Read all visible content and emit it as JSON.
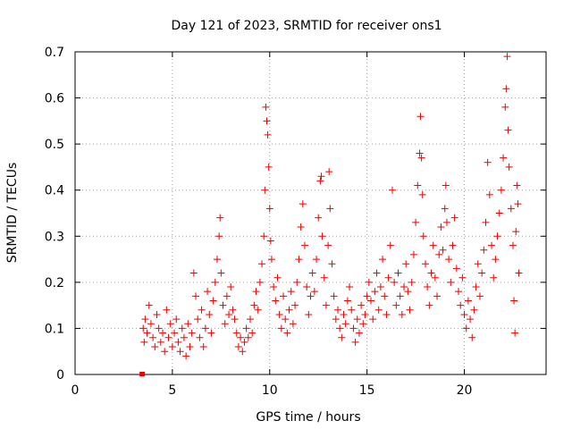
{
  "chart_data": {
    "type": "scatter",
    "title": "Day 121 of 2023, SRMTID for receiver ons1",
    "xlabel": "GPS time / hours",
    "ylabel": "SRMTID / TECUs",
    "xlim": [
      0,
      24.2
    ],
    "ylim": [
      0,
      0.7
    ],
    "x_ticks": [
      0,
      5,
      10,
      15,
      20
    ],
    "y_ticks": [
      0,
      0.1,
      0.2,
      0.3,
      0.4,
      0.5,
      0.6,
      0.7
    ],
    "x_tick_labels": [
      "0",
      "5",
      "10",
      "15",
      "20"
    ],
    "y_tick_labels": [
      "0",
      "0.1",
      "0.2",
      "0.3",
      "0.4",
      "0.5",
      "0.6",
      "0.7"
    ],
    "grid": true,
    "marker": "plus",
    "color": "#ee0000",
    "series": [
      {
        "name": "SRMTID",
        "points": [
          [
            3.45,
            0.0
          ],
          [
            3.5,
            0.1
          ],
          [
            3.55,
            0.07
          ],
          [
            3.6,
            0.12
          ],
          [
            3.7,
            0.09
          ],
          [
            3.8,
            0.15
          ],
          [
            3.9,
            0.11
          ],
          [
            4.0,
            0.08
          ],
          [
            4.1,
            0.06
          ],
          [
            4.2,
            0.13
          ],
          [
            4.3,
            0.1
          ],
          [
            4.4,
            0.07
          ],
          [
            4.5,
            0.09
          ],
          [
            4.6,
            0.05
          ],
          [
            4.7,
            0.14
          ],
          [
            4.8,
            0.08
          ],
          [
            4.9,
            0.11
          ],
          [
            5.0,
            0.06
          ],
          [
            5.1,
            0.09
          ],
          [
            5.2,
            0.12
          ],
          [
            5.3,
            0.07
          ],
          [
            5.4,
            0.05
          ],
          [
            5.5,
            0.1
          ],
          [
            5.6,
            0.08
          ],
          [
            5.7,
            0.04
          ],
          [
            5.8,
            0.11
          ],
          [
            5.9,
            0.06
          ],
          [
            6.0,
            0.09
          ],
          [
            6.1,
            0.22
          ],
          [
            6.2,
            0.17
          ],
          [
            6.3,
            0.12
          ],
          [
            6.4,
            0.08
          ],
          [
            6.5,
            0.14
          ],
          [
            6.6,
            0.06
          ],
          [
            6.7,
            0.1
          ],
          [
            6.8,
            0.18
          ],
          [
            6.9,
            0.13
          ],
          [
            7.0,
            0.09
          ],
          [
            7.1,
            0.16
          ],
          [
            7.2,
            0.2
          ],
          [
            7.3,
            0.25
          ],
          [
            7.4,
            0.3
          ],
          [
            7.45,
            0.34
          ],
          [
            7.5,
            0.22
          ],
          [
            7.6,
            0.15
          ],
          [
            7.7,
            0.11
          ],
          [
            7.8,
            0.17
          ],
          [
            7.9,
            0.13
          ],
          [
            8.0,
            0.19
          ],
          [
            8.1,
            0.14
          ],
          [
            8.2,
            0.12
          ],
          [
            8.3,
            0.09
          ],
          [
            8.4,
            0.06
          ],
          [
            8.5,
            0.08
          ],
          [
            8.6,
            0.05
          ],
          [
            8.7,
            0.07
          ],
          [
            8.8,
            0.1
          ],
          [
            8.9,
            0.08
          ],
          [
            9.0,
            0.12
          ],
          [
            9.1,
            0.09
          ],
          [
            9.2,
            0.15
          ],
          [
            9.3,
            0.18
          ],
          [
            9.4,
            0.14
          ],
          [
            9.5,
            0.2
          ],
          [
            9.6,
            0.24
          ],
          [
            9.7,
            0.3
          ],
          [
            9.75,
            0.4
          ],
          [
            9.8,
            0.58
          ],
          [
            9.85,
            0.55
          ],
          [
            9.9,
            0.52
          ],
          [
            9.95,
            0.45
          ],
          [
            10.0,
            0.36
          ],
          [
            10.05,
            0.29
          ],
          [
            10.1,
            0.25
          ],
          [
            10.2,
            0.19
          ],
          [
            10.3,
            0.16
          ],
          [
            10.4,
            0.21
          ],
          [
            10.5,
            0.13
          ],
          [
            10.6,
            0.1
          ],
          [
            10.7,
            0.17
          ],
          [
            10.8,
            0.12
          ],
          [
            10.9,
            0.09
          ],
          [
            11.0,
            0.14
          ],
          [
            11.1,
            0.18
          ],
          [
            11.2,
            0.11
          ],
          [
            11.3,
            0.15
          ],
          [
            11.4,
            0.2
          ],
          [
            11.5,
            0.25
          ],
          [
            11.6,
            0.32
          ],
          [
            11.7,
            0.37
          ],
          [
            11.8,
            0.28
          ],
          [
            11.9,
            0.19
          ],
          [
            12.0,
            0.13
          ],
          [
            12.1,
            0.17
          ],
          [
            12.2,
            0.22
          ],
          [
            12.3,
            0.18
          ],
          [
            12.4,
            0.25
          ],
          [
            12.5,
            0.34
          ],
          [
            12.6,
            0.42
          ],
          [
            12.65,
            0.43
          ],
          [
            12.7,
            0.3
          ],
          [
            12.8,
            0.21
          ],
          [
            12.9,
            0.15
          ],
          [
            13.0,
            0.28
          ],
          [
            13.05,
            0.44
          ],
          [
            13.1,
            0.36
          ],
          [
            13.2,
            0.24
          ],
          [
            13.3,
            0.17
          ],
          [
            13.4,
            0.12
          ],
          [
            13.5,
            0.14
          ],
          [
            13.6,
            0.1
          ],
          [
            13.7,
            0.08
          ],
          [
            13.8,
            0.13
          ],
          [
            13.9,
            0.11
          ],
          [
            14.0,
            0.16
          ],
          [
            14.1,
            0.19
          ],
          [
            14.2,
            0.14
          ],
          [
            14.3,
            0.1
          ],
          [
            14.4,
            0.07
          ],
          [
            14.5,
            0.12
          ],
          [
            14.6,
            0.09
          ],
          [
            14.7,
            0.15
          ],
          [
            14.8,
            0.11
          ],
          [
            14.9,
            0.13
          ],
          [
            15.0,
            0.17
          ],
          [
            15.1,
            0.2
          ],
          [
            15.2,
            0.16
          ],
          [
            15.3,
            0.12
          ],
          [
            15.4,
            0.18
          ],
          [
            15.5,
            0.22
          ],
          [
            15.6,
            0.14
          ],
          [
            15.7,
            0.19
          ],
          [
            15.8,
            0.25
          ],
          [
            15.9,
            0.17
          ],
          [
            16.0,
            0.13
          ],
          [
            16.1,
            0.21
          ],
          [
            16.2,
            0.28
          ],
          [
            16.3,
            0.4
          ],
          [
            16.4,
            0.2
          ],
          [
            16.5,
            0.15
          ],
          [
            16.6,
            0.22
          ],
          [
            16.7,
            0.17
          ],
          [
            16.8,
            0.13
          ],
          [
            16.9,
            0.19
          ],
          [
            17.0,
            0.24
          ],
          [
            17.1,
            0.18
          ],
          [
            17.2,
            0.14
          ],
          [
            17.3,
            0.2
          ],
          [
            17.4,
            0.26
          ],
          [
            17.5,
            0.33
          ],
          [
            17.6,
            0.41
          ],
          [
            17.7,
            0.48
          ],
          [
            17.75,
            0.56
          ],
          [
            17.8,
            0.47
          ],
          [
            17.85,
            0.39
          ],
          [
            17.9,
            0.3
          ],
          [
            18.0,
            0.24
          ],
          [
            18.1,
            0.19
          ],
          [
            18.2,
            0.15
          ],
          [
            18.3,
            0.22
          ],
          [
            18.4,
            0.28
          ],
          [
            18.5,
            0.21
          ],
          [
            18.6,
            0.17
          ],
          [
            18.7,
            0.26
          ],
          [
            18.8,
            0.32
          ],
          [
            18.9,
            0.27
          ],
          [
            19.0,
            0.36
          ],
          [
            19.05,
            0.41
          ],
          [
            19.1,
            0.33
          ],
          [
            19.2,
            0.25
          ],
          [
            19.3,
            0.2
          ],
          [
            19.4,
            0.28
          ],
          [
            19.5,
            0.34
          ],
          [
            19.6,
            0.23
          ],
          [
            19.7,
            0.18
          ],
          [
            19.8,
            0.15
          ],
          [
            19.9,
            0.21
          ],
          [
            20.0,
            0.13
          ],
          [
            20.1,
            0.1
          ],
          [
            20.2,
            0.16
          ],
          [
            20.3,
            0.12
          ],
          [
            20.4,
            0.08
          ],
          [
            20.5,
            0.14
          ],
          [
            20.6,
            0.19
          ],
          [
            20.7,
            0.24
          ],
          [
            20.8,
            0.17
          ],
          [
            20.9,
            0.22
          ],
          [
            21.0,
            0.27
          ],
          [
            21.1,
            0.33
          ],
          [
            21.2,
            0.46
          ],
          [
            21.3,
            0.39
          ],
          [
            21.4,
            0.28
          ],
          [
            21.5,
            0.21
          ],
          [
            21.6,
            0.25
          ],
          [
            21.7,
            0.3
          ],
          [
            21.8,
            0.35
          ],
          [
            21.9,
            0.4
          ],
          [
            22.0,
            0.47
          ],
          [
            22.1,
            0.58
          ],
          [
            22.15,
            0.62
          ],
          [
            22.2,
            0.69
          ],
          [
            22.25,
            0.53
          ],
          [
            22.3,
            0.45
          ],
          [
            22.4,
            0.36
          ],
          [
            22.5,
            0.28
          ],
          [
            22.55,
            0.16
          ],
          [
            22.6,
            0.09
          ],
          [
            22.65,
            0.31
          ],
          [
            22.7,
            0.41
          ],
          [
            22.75,
            0.37
          ],
          [
            22.8,
            0.22
          ]
        ]
      }
    ]
  }
}
